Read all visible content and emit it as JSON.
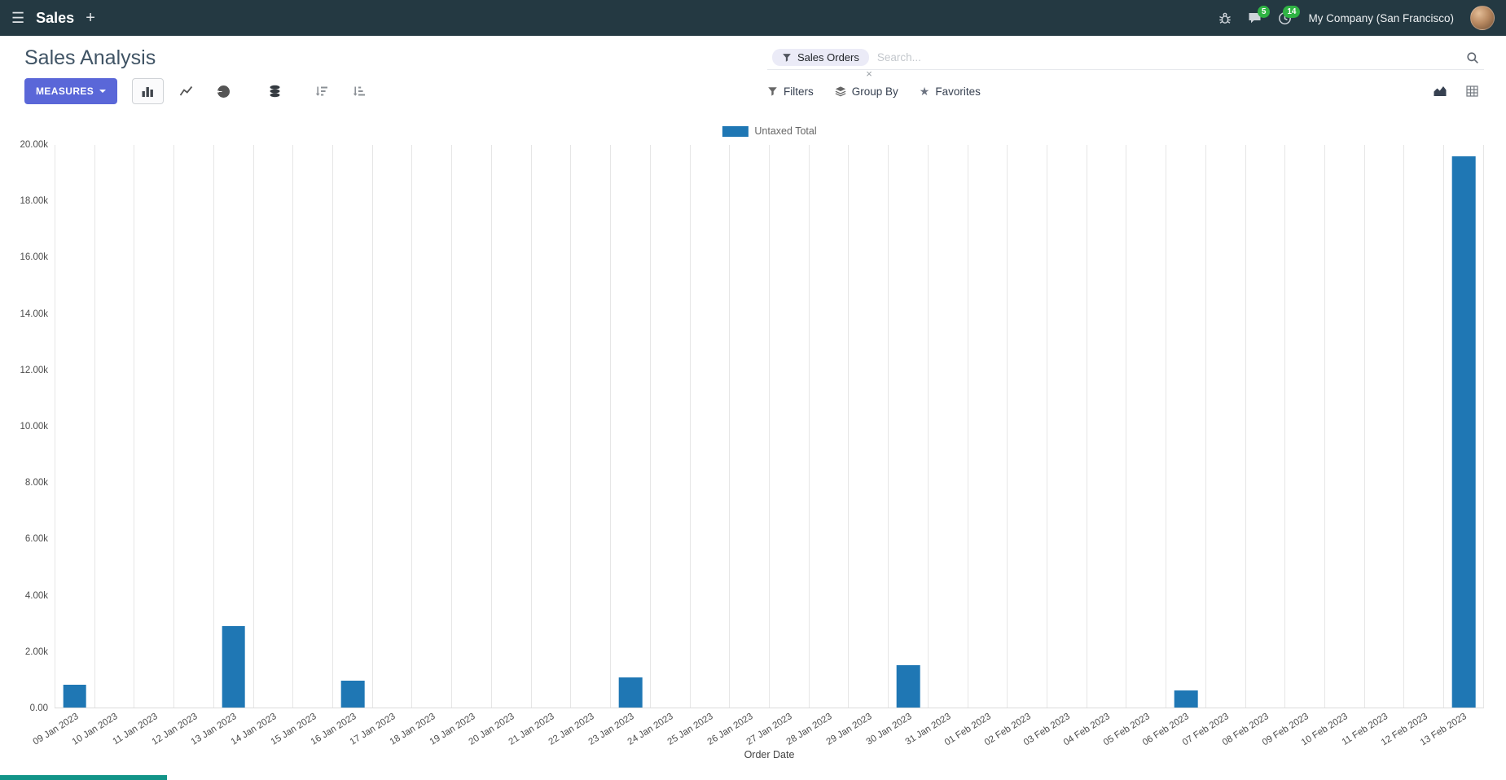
{
  "icons": {
    "hamburger": "☰",
    "plus": "+",
    "star": "★",
    "close": "×"
  },
  "navbar": {
    "app_name": "Sales",
    "messages_badge": "5",
    "activities_badge": "14",
    "company": "My Company (San Francisco)"
  },
  "control_panel": {
    "title": "Sales Analysis",
    "search": {
      "facet": "Sales Orders",
      "placeholder": "Search...",
      "remove_facet": "×"
    },
    "measures_label": "MEASURES",
    "filters_label": "Filters",
    "group_by_label": "Group By",
    "favorites_label": "Favorites"
  },
  "chart_data": {
    "type": "bar",
    "title": "",
    "xlabel": "Order Date",
    "ylabel": "",
    "ylim": [
      0,
      20000
    ],
    "grid": "vertical",
    "legend_position": "top",
    "ytick_labels": [
      "0.00",
      "2.00k",
      "4.00k",
      "6.00k",
      "8.00k",
      "10.00k",
      "12.00k",
      "14.00k",
      "16.00k",
      "18.00k",
      "20.00k"
    ],
    "ytick_values": [
      0,
      2000,
      4000,
      6000,
      8000,
      10000,
      12000,
      14000,
      16000,
      18000,
      20000
    ],
    "categories": [
      "09 Jan 2023",
      "10 Jan 2023",
      "11 Jan 2023",
      "12 Jan 2023",
      "13 Jan 2023",
      "14 Jan 2023",
      "15 Jan 2023",
      "16 Jan 2023",
      "17 Jan 2023",
      "18 Jan 2023",
      "19 Jan 2023",
      "20 Jan 2023",
      "21 Jan 2023",
      "22 Jan 2023",
      "23 Jan 2023",
      "24 Jan 2023",
      "25 Jan 2023",
      "26 Jan 2023",
      "27 Jan 2023",
      "28 Jan 2023",
      "29 Jan 2023",
      "30 Jan 2023",
      "31 Jan 2023",
      "01 Feb 2023",
      "02 Feb 2023",
      "03 Feb 2023",
      "04 Feb 2023",
      "05 Feb 2023",
      "06 Feb 2023",
      "07 Feb 2023",
      "08 Feb 2023",
      "09 Feb 2023",
      "10 Feb 2023",
      "11 Feb 2023",
      "12 Feb 2023",
      "13 Feb 2023"
    ],
    "series": [
      {
        "name": "Untaxed Total",
        "color": "#1f77b4",
        "values": [
          800,
          0,
          0,
          0,
          2900,
          0,
          0,
          950,
          0,
          0,
          0,
          0,
          0,
          0,
          1080,
          0,
          0,
          0,
          0,
          0,
          0,
          1500,
          0,
          0,
          0,
          0,
          0,
          0,
          620,
          0,
          0,
          0,
          0,
          0,
          0,
          19600
        ]
      }
    ]
  }
}
